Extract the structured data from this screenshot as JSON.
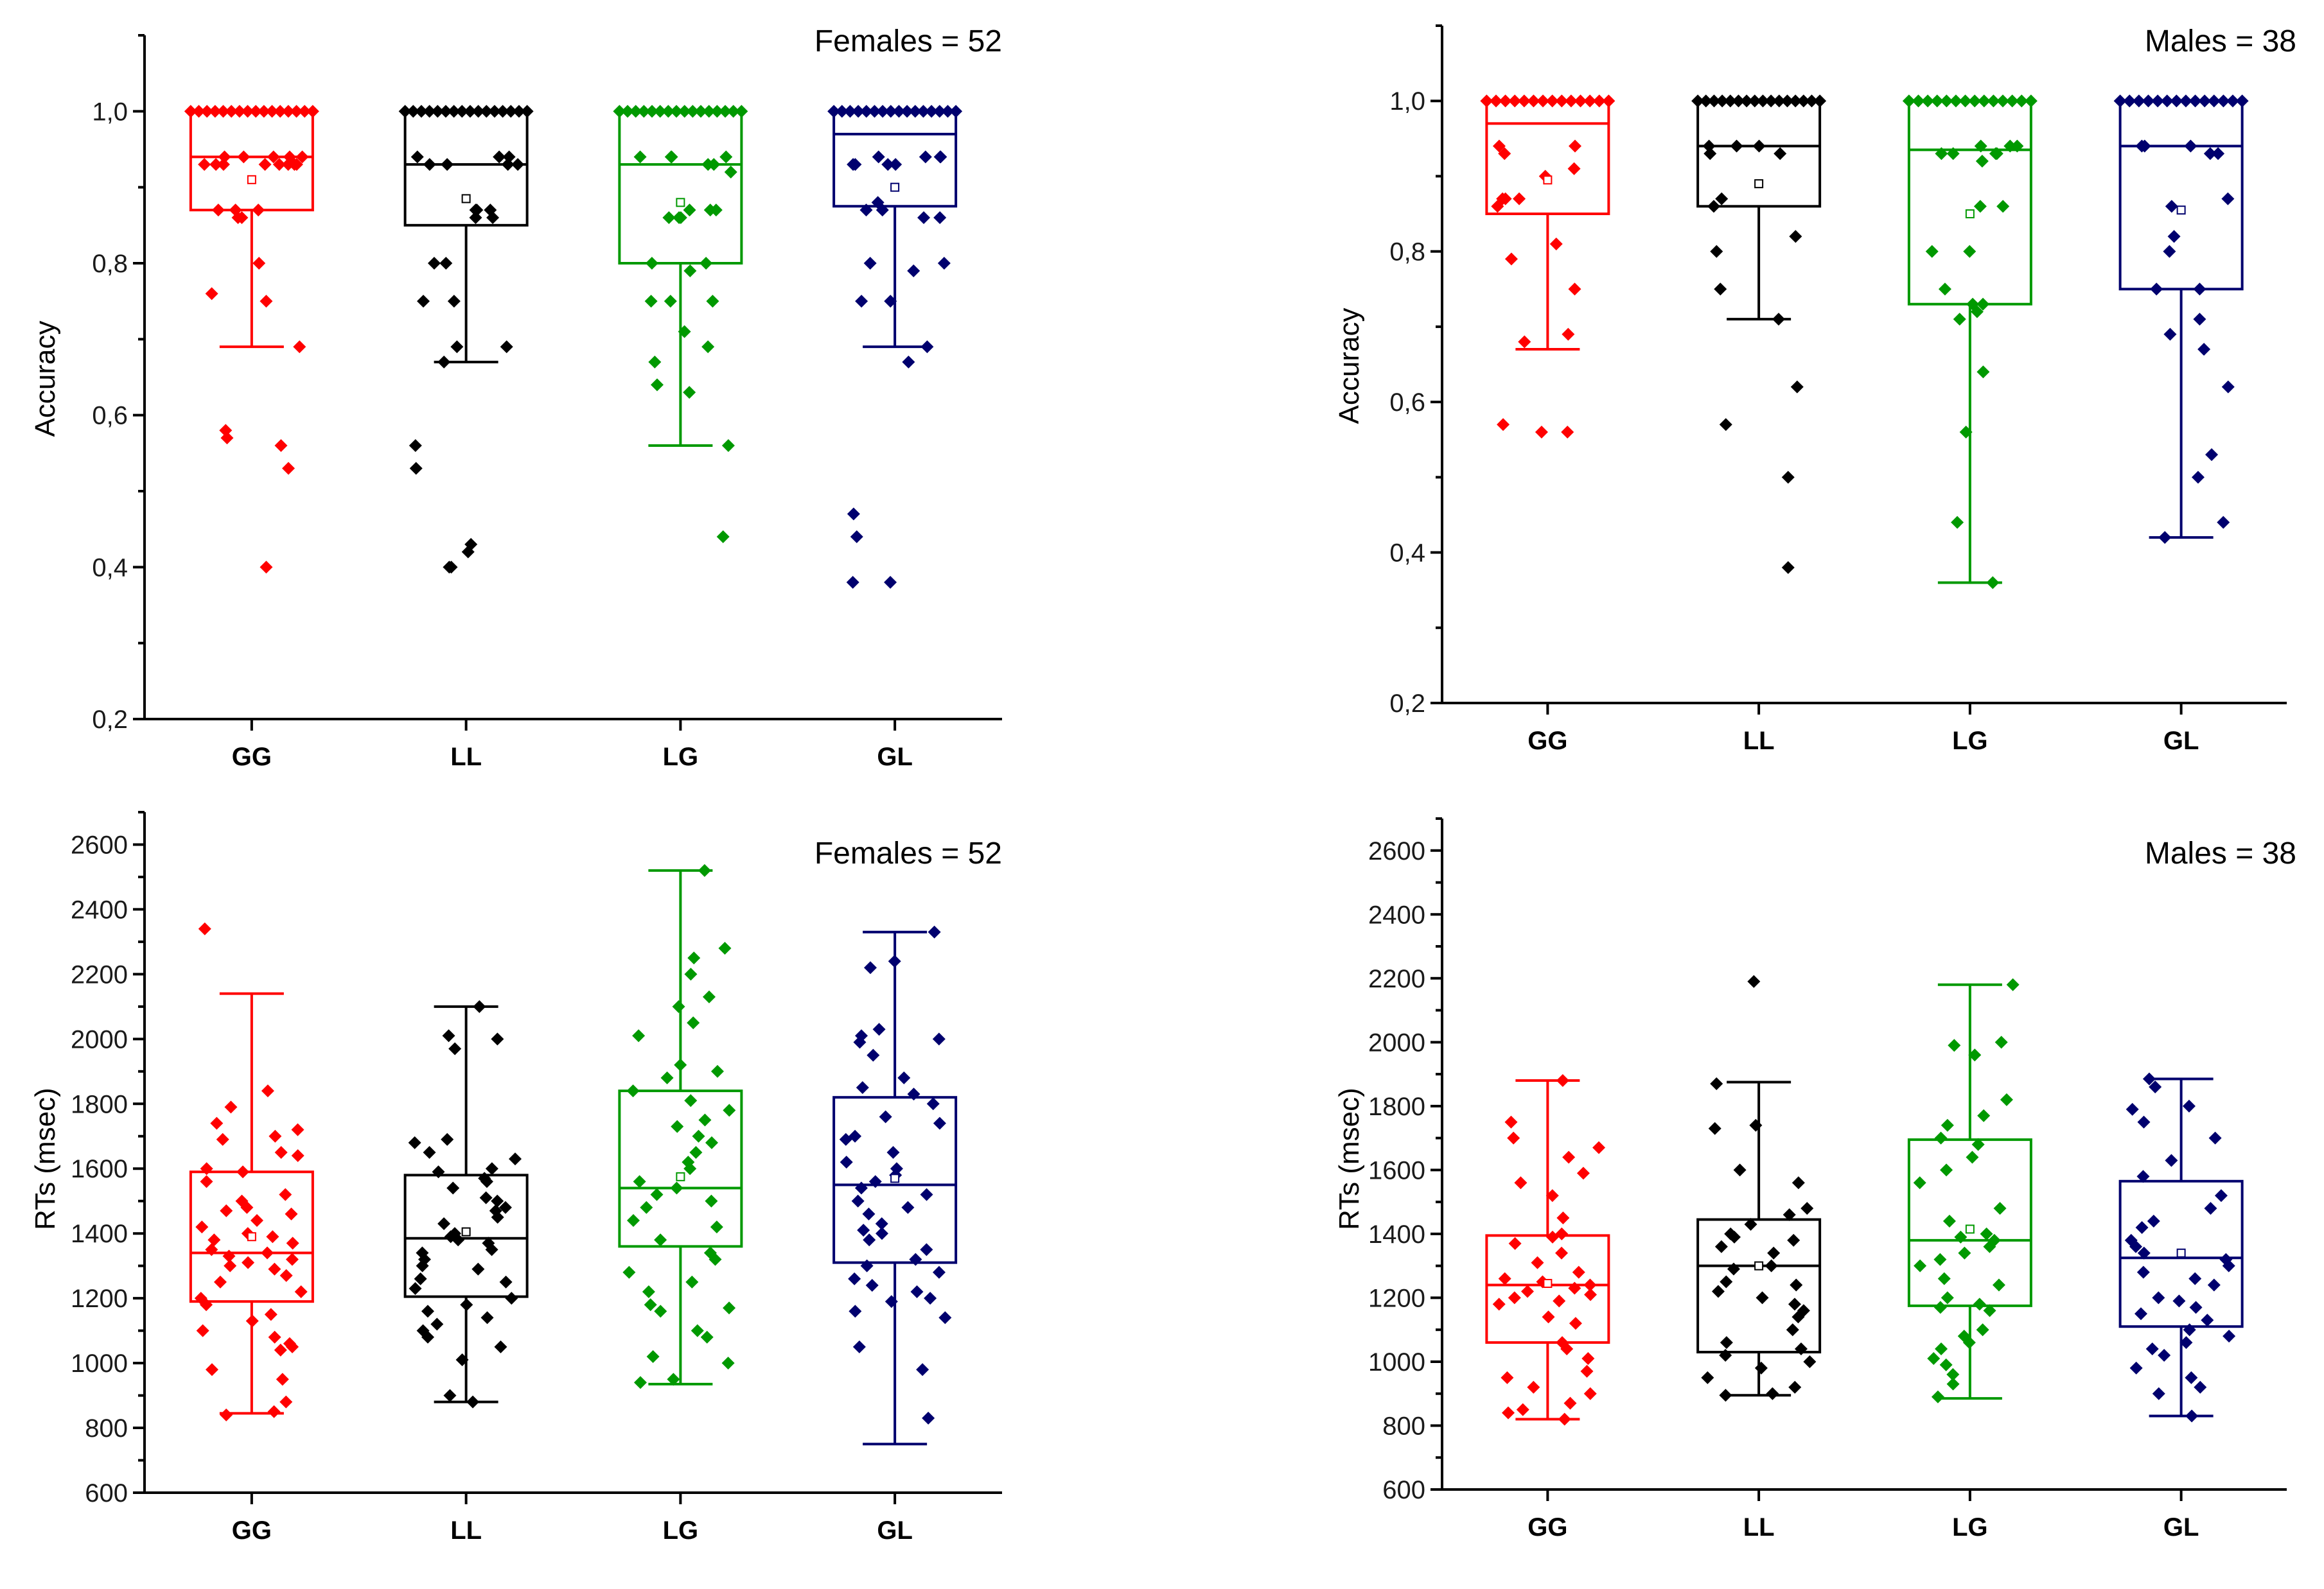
{
  "chart_data": [
    {
      "type": "box",
      "annotation": "Females = 52",
      "ylabel": "Accuracy",
      "ylim": [
        0.2,
        1.1
      ],
      "yticks": [
        "0,2",
        "0,4",
        "0,6",
        "0,8",
        "1,0"
      ],
      "categories": [
        "GG",
        "LL",
        "LG",
        "GL"
      ],
      "colors": [
        "#ff0000",
        "#000000",
        "#009900",
        "#00006e"
      ],
      "boxes": [
        {
          "min": 0.69,
          "q1": 0.87,
          "median": 0.94,
          "q3": 1.0,
          "max": 1.0,
          "mean": 0.91
        },
        {
          "min": 0.67,
          "q1": 0.85,
          "median": 0.93,
          "q3": 1.0,
          "max": 1.0,
          "mean": 0.885
        },
        {
          "min": 0.56,
          "q1": 0.8,
          "median": 0.93,
          "q3": 1.0,
          "max": 1.0,
          "mean": 0.88
        },
        {
          "min": 0.69,
          "q1": 0.875,
          "median": 0.97,
          "q3": 1.0,
          "max": 1.0,
          "mean": 0.9
        }
      ],
      "points": [
        [
          1,
          1,
          1,
          1,
          1,
          1,
          1,
          1,
          1,
          1,
          1,
          1,
          1,
          1,
          1,
          1,
          0.94,
          0.94,
          0.94,
          0.94,
          0.94,
          0.93,
          0.93,
          0.93,
          0.93,
          0.93,
          0.93,
          0.93,
          0.93,
          0.87,
          0.87,
          0.87,
          0.86,
          0.86,
          0.8,
          0.76,
          0.75,
          0.69,
          0.58,
          0.57,
          0.56,
          0.53,
          0.4
        ],
        [
          1,
          1,
          1,
          1,
          1,
          1,
          1,
          1,
          1,
          1,
          1,
          1,
          1,
          1,
          1,
          1,
          0.94,
          0.94,
          0.94,
          0.93,
          0.93,
          0.93,
          0.93,
          0.87,
          0.87,
          0.87,
          0.86,
          0.86,
          0.8,
          0.8,
          0.75,
          0.75,
          0.69,
          0.69,
          0.67,
          0.56,
          0.53,
          0.43,
          0.42,
          0.4,
          0.4
        ],
        [
          1,
          1,
          1,
          1,
          1,
          1,
          1,
          1,
          1,
          1,
          1,
          1,
          1,
          1,
          1,
          1,
          0.94,
          0.94,
          0.94,
          0.94,
          0.93,
          0.93,
          0.92,
          0.87,
          0.87,
          0.87,
          0.86,
          0.86,
          0.86,
          0.8,
          0.8,
          0.79,
          0.75,
          0.75,
          0.75,
          0.71,
          0.69,
          0.67,
          0.64,
          0.63,
          0.56,
          0.44
        ],
        [
          1,
          1,
          1,
          1,
          1,
          1,
          1,
          1,
          1,
          1,
          1,
          1,
          1,
          1,
          1,
          1,
          0.94,
          0.94,
          0.94,
          0.94,
          0.93,
          0.93,
          0.93,
          0.93,
          0.88,
          0.87,
          0.87,
          0.86,
          0.86,
          0.8,
          0.8,
          0.79,
          0.75,
          0.75,
          0.69,
          0.67,
          0.47,
          0.44,
          0.38,
          0.38
        ]
      ]
    },
    {
      "type": "box",
      "annotation": "Males = 38",
      "ylabel": "Accuracy",
      "ylim": [
        0.2,
        1.1
      ],
      "yticks": [
        "0,2",
        "0,4",
        "0,6",
        "0,8",
        "1,0"
      ],
      "categories": [
        "GG",
        "LL",
        "LG",
        "GL"
      ],
      "colors": [
        "#ff0000",
        "#000000",
        "#009900",
        "#00006e"
      ],
      "boxes": [
        {
          "min": 0.67,
          "q1": 0.85,
          "median": 0.97,
          "q3": 1.0,
          "max": 1.0,
          "mean": 0.895
        },
        {
          "min": 0.71,
          "q1": 0.86,
          "median": 0.94,
          "q3": 1.0,
          "max": 1.0,
          "mean": 0.89
        },
        {
          "min": 0.36,
          "q1": 0.73,
          "median": 0.935,
          "q3": 1.0,
          "max": 1.0,
          "mean": 0.85
        },
        {
          "min": 0.42,
          "q1": 0.75,
          "median": 0.94,
          "q3": 1.0,
          "max": 1.0,
          "mean": 0.855
        }
      ],
      "points": [
        [
          1,
          1,
          1,
          1,
          1,
          1,
          1,
          1,
          1,
          1,
          1,
          1,
          1,
          1,
          0.94,
          0.94,
          0.93,
          0.91,
          0.9,
          0.87,
          0.87,
          0.87,
          0.86,
          0.81,
          0.79,
          0.75,
          0.69,
          0.68,
          0.57,
          0.56,
          0.56
        ],
        [
          1,
          1,
          1,
          1,
          1,
          1,
          1,
          1,
          1,
          1,
          1,
          1,
          1,
          1,
          1,
          1,
          0.94,
          0.94,
          0.94,
          0.93,
          0.93,
          0.87,
          0.86,
          0.82,
          0.8,
          0.75,
          0.71,
          0.62,
          0.57,
          0.5,
          0.38
        ],
        [
          1,
          1,
          1,
          1,
          1,
          1,
          1,
          1,
          1,
          1,
          1,
          1,
          1,
          1,
          0.94,
          0.94,
          0.94,
          0.93,
          0.93,
          0.93,
          0.93,
          0.92,
          0.86,
          0.86,
          0.8,
          0.8,
          0.75,
          0.73,
          0.73,
          0.72,
          0.71,
          0.64,
          0.56,
          0.44,
          0.36
        ],
        [
          1,
          1,
          1,
          1,
          1,
          1,
          1,
          1,
          1,
          1,
          1,
          1,
          1,
          1,
          0.94,
          0.94,
          0.94,
          0.93,
          0.93,
          0.87,
          0.86,
          0.82,
          0.8,
          0.75,
          0.75,
          0.71,
          0.69,
          0.67,
          0.62,
          0.53,
          0.5,
          0.44,
          0.42
        ]
      ]
    },
    {
      "type": "box",
      "annotation": "Females = 52",
      "ylabel": "RTs (msec)",
      "ylim": [
        600,
        2700
      ],
      "yticks": [
        "600",
        "800",
        "1000",
        "1200",
        "1400",
        "1600",
        "1800",
        "2000",
        "2200",
        "2400",
        "2600"
      ],
      "categories": [
        "GG",
        "LL",
        "LG",
        "GL"
      ],
      "colors": [
        "#ff0000",
        "#000000",
        "#009900",
        "#00006e"
      ],
      "boxes": [
        {
          "min": 845,
          "q1": 1190,
          "median": 1340,
          "q3": 1590,
          "max": 2140,
          "mean": 1390
        },
        {
          "min": 880,
          "q1": 1205,
          "median": 1385,
          "q3": 1580,
          "max": 2100,
          "mean": 1405
        },
        {
          "min": 935,
          "q1": 1360,
          "median": 1540,
          "q3": 1840,
          "max": 2520,
          "mean": 1575
        },
        {
          "min": 750,
          "q1": 1310,
          "median": 1550,
          "q3": 1820,
          "max": 2330,
          "mean": 1570
        }
      ],
      "points": [
        [
          2340,
          1840,
          1790,
          1740,
          1720,
          1700,
          1690,
          1650,
          1640,
          1600,
          1590,
          1560,
          1520,
          1500,
          1480,
          1470,
          1460,
          1440,
          1420,
          1400,
          1390,
          1380,
          1370,
          1350,
          1340,
          1330,
          1320,
          1310,
          1300,
          1290,
          1270,
          1250,
          1220,
          1200,
          1180,
          1150,
          1130,
          1100,
          1080,
          1060,
          1050,
          1040,
          980,
          950,
          880,
          850,
          840
        ],
        [
          2100,
          2010,
          2000,
          1970,
          1690,
          1680,
          1650,
          1630,
          1600,
          1590,
          1570,
          1560,
          1540,
          1510,
          1500,
          1480,
          1470,
          1450,
          1430,
          1400,
          1390,
          1380,
          1370,
          1350,
          1340,
          1320,
          1300,
          1290,
          1260,
          1250,
          1230,
          1200,
          1180,
          1160,
          1140,
          1120,
          1100,
          1080,
          1050,
          1010,
          900,
          880
        ],
        [
          2520,
          2280,
          2250,
          2200,
          2130,
          2100,
          2050,
          2010,
          1920,
          1900,
          1880,
          1840,
          1810,
          1780,
          1750,
          1730,
          1700,
          1680,
          1650,
          1620,
          1600,
          1560,
          1540,
          1520,
          1500,
          1480,
          1440,
          1420,
          1380,
          1340,
          1320,
          1280,
          1250,
          1220,
          1180,
          1170,
          1160,
          1100,
          1080,
          1020,
          1000,
          950,
          940
        ],
        [
          2330,
          2240,
          2220,
          2030,
          2010,
          2000,
          1990,
          1950,
          1880,
          1850,
          1830,
          1800,
          1760,
          1740,
          1700,
          1690,
          1650,
          1620,
          1600,
          1580,
          1560,
          1540,
          1520,
          1500,
          1480,
          1460,
          1430,
          1410,
          1400,
          1380,
          1350,
          1320,
          1300,
          1280,
          1260,
          1240,
          1220,
          1200,
          1190,
          1160,
          1140,
          1050,
          980,
          830
        ]
      ]
    },
    {
      "type": "box",
      "annotation": "Males = 38",
      "ylabel": "RTs (msec)",
      "ylim": [
        600,
        2700
      ],
      "yticks": [
        "600",
        "800",
        "1000",
        "1200",
        "1400",
        "1600",
        "1800",
        "2000",
        "2200",
        "2400",
        "2600"
      ],
      "categories": [
        "GG",
        "LL",
        "LG",
        "GL"
      ],
      "colors": [
        "#ff0000",
        "#000000",
        "#009900",
        "#00006e"
      ],
      "boxes": [
        {
          "min": 820,
          "q1": 1060,
          "median": 1240,
          "q3": 1395,
          "max": 1880,
          "mean": 1245
        },
        {
          "min": 895,
          "q1": 1030,
          "median": 1300,
          "q3": 1445,
          "max": 1875,
          "mean": 1300
        },
        {
          "min": 885,
          "q1": 1175,
          "median": 1380,
          "q3": 1695,
          "max": 2180,
          "mean": 1415
        },
        {
          "min": 830,
          "q1": 1110,
          "median": 1325,
          "q3": 1565,
          "max": 1885,
          "mean": 1340
        }
      ],
      "points": [
        [
          1880,
          1750,
          1700,
          1670,
          1640,
          1590,
          1560,
          1520,
          1450,
          1400,
          1390,
          1370,
          1340,
          1310,
          1280,
          1260,
          1250,
          1240,
          1230,
          1220,
          1210,
          1200,
          1190,
          1180,
          1140,
          1120,
          1060,
          1040,
          1010,
          970,
          950,
          920,
          900,
          870,
          850,
          840,
          820
        ],
        [
          2190,
          1870,
          1740,
          1730,
          1600,
          1560,
          1480,
          1460,
          1430,
          1400,
          1390,
          1380,
          1360,
          1340,
          1300,
          1290,
          1250,
          1240,
          1220,
          1200,
          1180,
          1160,
          1140,
          1100,
          1060,
          1040,
          1020,
          1000,
          980,
          950,
          920,
          900,
          895
        ],
        [
          2180,
          2000,
          1990,
          1960,
          1820,
          1770,
          1740,
          1700,
          1680,
          1640,
          1600,
          1560,
          1480,
          1440,
          1400,
          1390,
          1380,
          1360,
          1340,
          1320,
          1300,
          1260,
          1240,
          1200,
          1180,
          1170,
          1160,
          1100,
          1080,
          1060,
          1040,
          1010,
          990,
          960,
          930,
          890
        ],
        [
          1885,
          1860,
          1800,
          1790,
          1750,
          1700,
          1630,
          1580,
          1520,
          1480,
          1440,
          1420,
          1380,
          1360,
          1340,
          1320,
          1300,
          1280,
          1260,
          1240,
          1200,
          1190,
          1170,
          1150,
          1130,
          1100,
          1080,
          1060,
          1040,
          1020,
          980,
          950,
          920,
          900,
          830
        ]
      ]
    }
  ]
}
